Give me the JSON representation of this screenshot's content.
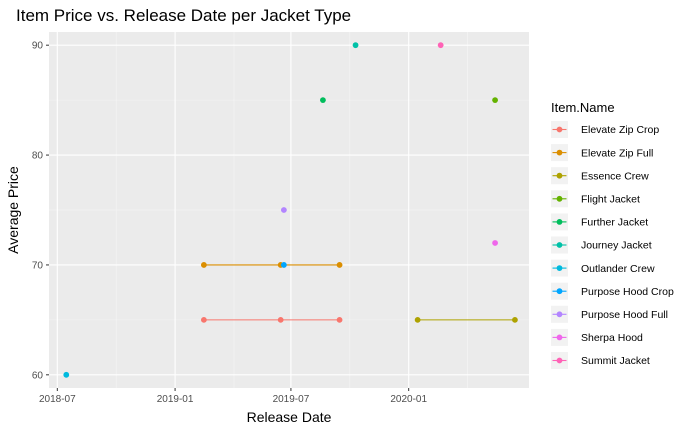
{
  "chart_data": {
    "type": "line",
    "title": "Item Price vs. Release Date per Jacket Type",
    "xlabel": "Release Date",
    "ylabel": "Average Price",
    "x_axis_type": "date",
    "xlim": [
      "2018-06-18",
      "2020-07-07"
    ],
    "ylim": [
      58.8,
      91.2
    ],
    "x_ticks": [
      {
        "value": "2018-07-01",
        "label": "2018-07"
      },
      {
        "value": "2019-01-01",
        "label": "2019-01"
      },
      {
        "value": "2019-07-01",
        "label": "2019-07"
      },
      {
        "value": "2020-01-01",
        "label": "2020-01"
      }
    ],
    "y_ticks": [
      60,
      70,
      80,
      90
    ],
    "grid": true,
    "legend_title": "Item.Name",
    "legend_position": "right",
    "series": [
      {
        "name": "Elevate Zip Crop",
        "color": "#F8766D",
        "points": [
          {
            "x": "2019-02-15",
            "y": 65
          },
          {
            "x": "2019-06-15",
            "y": 65
          },
          {
            "x": "2019-09-15",
            "y": 65
          }
        ]
      },
      {
        "name": "Elevate Zip Full",
        "color": "#DB8E00",
        "points": [
          {
            "x": "2019-02-15",
            "y": 70
          },
          {
            "x": "2019-06-15",
            "y": 70
          },
          {
            "x": "2019-09-15",
            "y": 70
          }
        ]
      },
      {
        "name": "Essence Crew",
        "color": "#AEA200",
        "points": [
          {
            "x": "2020-01-15",
            "y": 65
          },
          {
            "x": "2020-06-15",
            "y": 65
          }
        ]
      },
      {
        "name": "Flight Jacket",
        "color": "#64B200",
        "points": [
          {
            "x": "2020-05-15",
            "y": 85
          }
        ]
      },
      {
        "name": "Further Jacket",
        "color": "#00BD5C",
        "points": [
          {
            "x": "2019-08-20",
            "y": 85
          }
        ]
      },
      {
        "name": "Journey Jacket",
        "color": "#00C1A7",
        "points": [
          {
            "x": "2019-10-10",
            "y": 90
          }
        ]
      },
      {
        "name": "Outlander Crew",
        "color": "#00BADE",
        "points": [
          {
            "x": "2018-07-15",
            "y": 60
          }
        ]
      },
      {
        "name": "Purpose Hood Crop",
        "color": "#00A6FF",
        "points": [
          {
            "x": "2019-06-20",
            "y": 70
          }
        ]
      },
      {
        "name": "Purpose Hood Full",
        "color": "#B385FF",
        "points": [
          {
            "x": "2019-06-20",
            "y": 75
          }
        ]
      },
      {
        "name": "Sherpa Hood",
        "color": "#EF67EB",
        "points": [
          {
            "x": "2020-05-15",
            "y": 72
          }
        ]
      },
      {
        "name": "Summit Jacket",
        "color": "#FF63B6",
        "points": [
          {
            "x": "2020-02-20",
            "y": 90
          }
        ]
      }
    ]
  }
}
